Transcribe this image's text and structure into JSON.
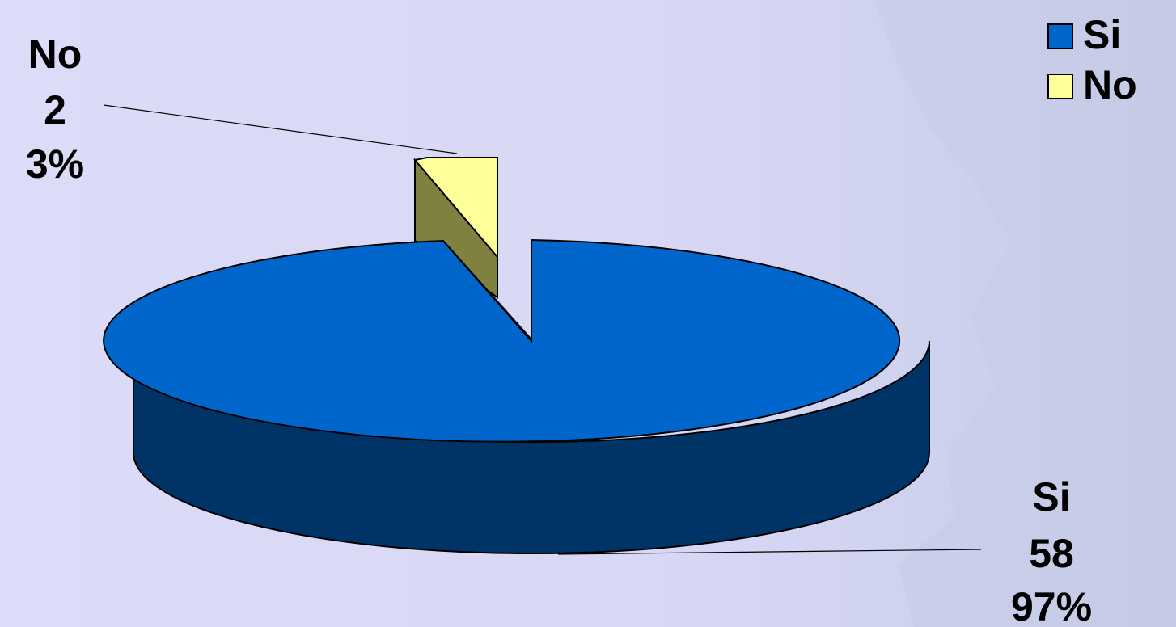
{
  "chart_data": {
    "type": "pie",
    "is_3d": true,
    "title": "",
    "categories": [
      "Si",
      "No"
    ],
    "values": [
      58,
      2
    ],
    "percentages": [
      "97%",
      "3%"
    ],
    "colors": {
      "Si": {
        "top": "#0066cc",
        "side": "#003366"
      },
      "No": {
        "top": "#ffff99",
        "side": "#808040"
      }
    },
    "exploded": "No",
    "legend": {
      "position": "top-right",
      "entries": [
        "Si",
        "No"
      ]
    },
    "data_labels": [
      {
        "category": "Si",
        "value": "58",
        "percent": "97%"
      },
      {
        "category": "No",
        "value": "2",
        "percent": "3%"
      }
    ]
  }
}
